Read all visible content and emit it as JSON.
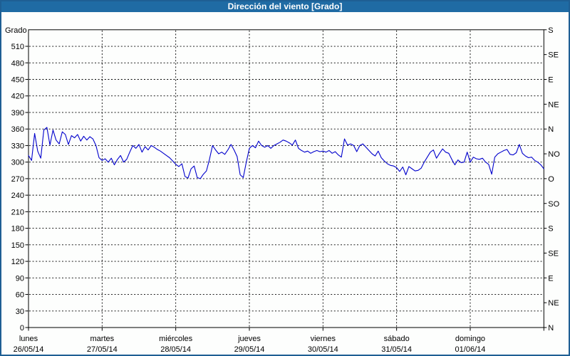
{
  "window": {
    "title": "Dirección del viento [Grado]"
  },
  "colors": {
    "titlebar_bg": "#1f6ba4",
    "window_border": "#1e5f94",
    "line": "#0000cc",
    "grid": "#000000",
    "title_text": "#ffffff",
    "background": "#fdfefd"
  },
  "chart_data": {
    "type": "line",
    "title": "Dirección del viento [Grado]",
    "ylabel": "Grado",
    "ylim": [
      0,
      540
    ],
    "grid": "dashed",
    "legend": "none",
    "y_ticks_left": [
      0,
      30,
      60,
      90,
      120,
      150,
      180,
      210,
      240,
      270,
      300,
      330,
      360,
      390,
      420,
      450,
      480,
      510
    ],
    "right_axis": {
      "step": 45,
      "labels_bottom_to_top": [
        "N",
        "NE",
        "E",
        "SE",
        "S",
        "SO",
        "O",
        "NO",
        "N",
        "NE",
        "E",
        "SE",
        "S"
      ]
    },
    "x_days": [
      {
        "name": "lunes",
        "date": "26/05/14"
      },
      {
        "name": "martes",
        "date": "27/05/14"
      },
      {
        "name": "miércoles",
        "date": "28/05/14"
      },
      {
        "name": "jueves",
        "date": "29/05/14"
      },
      {
        "name": "viernes",
        "date": "30/05/14"
      },
      {
        "name": "sábado",
        "date": "31/05/14"
      },
      {
        "name": "domingo",
        "date": "01/06/14"
      }
    ],
    "x_unit": "hours",
    "hours_per_point": 1,
    "series": [
      {
        "name": "Dirección del viento",
        "color": "#0000cc",
        "values": [
          312,
          303,
          352,
          320,
          307,
          358,
          363,
          331,
          358,
          340,
          333,
          355,
          350,
          332,
          348,
          344,
          350,
          338,
          347,
          340,
          346,
          342,
          330,
          308,
          303,
          306,
          300,
          307,
          295,
          305,
          312,
          300,
          305,
          318,
          330,
          325,
          332,
          318,
          328,
          322,
          330,
          327,
          323,
          320,
          316,
          312,
          308,
          302,
          296,
          292,
          297,
          274,
          271,
          288,
          293,
          272,
          270,
          278,
          284,
          305,
          330,
          322,
          315,
          318,
          314,
          322,
          332,
          322,
          310,
          277,
          272,
          300,
          325,
          330,
          326,
          338,
          330,
          327,
          330,
          325,
          330,
          333,
          336,
          340,
          338,
          335,
          331,
          340,
          325,
          321,
          318,
          320,
          316,
          319,
          321,
          319,
          320,
          318,
          321,
          316,
          319,
          313,
          309,
          342,
          331,
          333,
          330,
          319,
          330,
          333,
          327,
          321,
          315,
          311,
          320,
          308,
          302,
          297,
          294,
          293,
          290,
          283,
          291,
          277,
          292,
          288,
          284,
          285,
          289,
          300,
          309,
          318,
          322,
          307,
          316,
          324,
          318,
          316,
          305,
          295,
          304,
          299,
          300,
          318,
          300,
          309,
          306,
          305,
          307,
          300,
          296,
          278,
          309,
          315,
          318,
          321,
          323,
          314,
          313,
          317,
          332,
          316,
          311,
          308,
          309,
          303,
          300,
          295,
          288
        ]
      }
    ]
  }
}
